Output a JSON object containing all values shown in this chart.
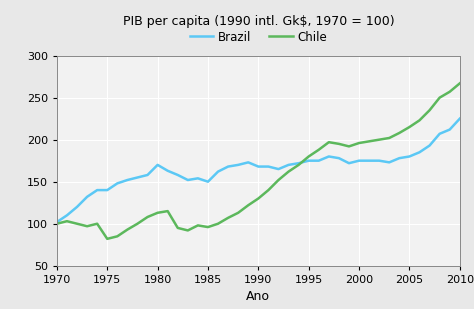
{
  "title": "PIB per capita (1990 intl. Gk$, 1970 = 100)",
  "xlabel": "Ano",
  "xlim": [
    1970,
    2010
  ],
  "ylim": [
    50,
    300
  ],
  "yticks": [
    50,
    100,
    150,
    200,
    250,
    300
  ],
  "xticks": [
    1970,
    1975,
    1980,
    1985,
    1990,
    1995,
    2000,
    2005,
    2010
  ],
  "brazil_color": "#5bc8f5",
  "chile_color": "#5cb85c",
  "brazil_label": "Brazil",
  "chile_label": "Chile",
  "brazil_data": {
    "years": [
      1970,
      1971,
      1972,
      1973,
      1974,
      1975,
      1976,
      1977,
      1978,
      1979,
      1980,
      1981,
      1982,
      1983,
      1984,
      1985,
      1986,
      1987,
      1988,
      1989,
      1990,
      1991,
      1992,
      1993,
      1994,
      1995,
      1996,
      1997,
      1998,
      1999,
      2000,
      2001,
      2002,
      2003,
      2004,
      2005,
      2006,
      2007,
      2008,
      2009,
      2010
    ],
    "values": [
      102,
      110,
      120,
      132,
      140,
      140,
      148,
      152,
      155,
      158,
      170,
      163,
      158,
      152,
      154,
      150,
      162,
      168,
      170,
      173,
      168,
      168,
      165,
      170,
      172,
      175,
      175,
      180,
      178,
      172,
      175,
      175,
      175,
      173,
      178,
      180,
      185,
      193,
      207,
      212,
      225
    ]
  },
  "chile_data": {
    "years": [
      1970,
      1971,
      1972,
      1973,
      1974,
      1975,
      1976,
      1977,
      1978,
      1979,
      1980,
      1981,
      1982,
      1983,
      1984,
      1985,
      1986,
      1987,
      1988,
      1989,
      1990,
      1991,
      1992,
      1993,
      1994,
      1995,
      1996,
      1997,
      1998,
      1999,
      2000,
      2001,
      2002,
      2003,
      2004,
      2005,
      2006,
      2007,
      2008,
      2009,
      2010
    ],
    "values": [
      100,
      103,
      100,
      97,
      100,
      82,
      85,
      93,
      100,
      108,
      113,
      115,
      95,
      92,
      98,
      96,
      100,
      107,
      113,
      122,
      130,
      140,
      152,
      162,
      170,
      180,
      188,
      197,
      195,
      192,
      196,
      198,
      200,
      202,
      208,
      215,
      223,
      235,
      250,
      257,
      267
    ]
  },
  "background_color": "#e8e8e8",
  "plot_bg_color": "#f2f2f2",
  "grid_color": "#ffffff",
  "line_width": 1.8
}
